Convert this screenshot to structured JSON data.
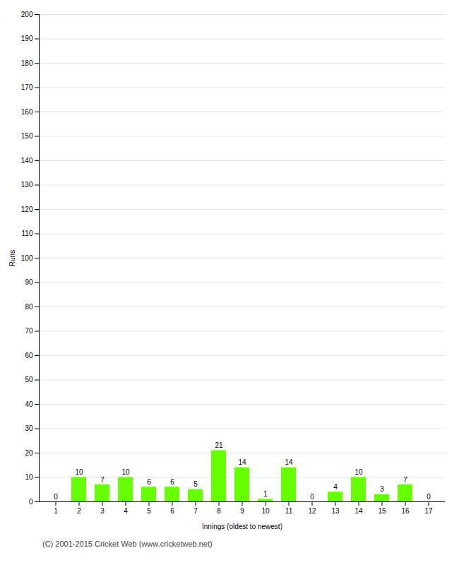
{
  "chart_data": {
    "type": "bar",
    "xlabel": "Innings (oldest to newest)",
    "ylabel": "Runs",
    "categories": [
      1,
      2,
      3,
      4,
      5,
      6,
      7,
      8,
      9,
      10,
      11,
      12,
      13,
      14,
      15,
      16,
      17
    ],
    "values": [
      0,
      10,
      7,
      10,
      6,
      6,
      5,
      21,
      14,
      1,
      14,
      0,
      4,
      10,
      3,
      7,
      0
    ],
    "color": "#66ff00",
    "ylim": [
      0,
      200
    ],
    "yticks": [
      0,
      10,
      20,
      30,
      40,
      50,
      60,
      70,
      80,
      90,
      100,
      110,
      120,
      130,
      140,
      150,
      160,
      170,
      180,
      190,
      200
    ],
    "grid": true,
    "data_labels": true,
    "annotations": [
      "(C) 2001-2015 Cricket Web (www.cricketweb.net)"
    ]
  }
}
